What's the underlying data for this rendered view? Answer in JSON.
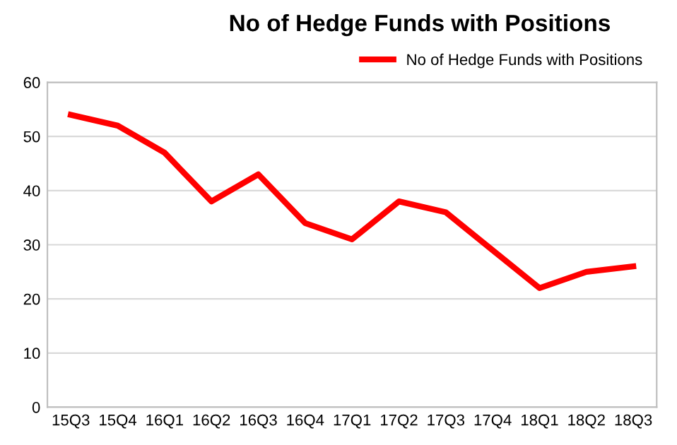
{
  "chart_data": {
    "type": "line",
    "title": "No of Hedge Funds with Positions",
    "categories": [
      "15Q3",
      "15Q4",
      "16Q1",
      "16Q2",
      "16Q3",
      "16Q4",
      "17Q1",
      "17Q2",
      "17Q3",
      "17Q4",
      "18Q1",
      "18Q2",
      "18Q3"
    ],
    "series": [
      {
        "name": "No of Hedge Funds with Positions",
        "color": "#ff0000",
        "values": [
          54,
          52,
          47,
          38,
          43,
          34,
          31,
          38,
          36,
          29,
          22,
          25,
          26
        ]
      }
    ],
    "ylim": [
      0,
      60
    ],
    "yticks": [
      0,
      10,
      20,
      30,
      40,
      50,
      60
    ],
    "grid": "y",
    "legend": "top right",
    "marker": "none",
    "line_style": "solid"
  }
}
